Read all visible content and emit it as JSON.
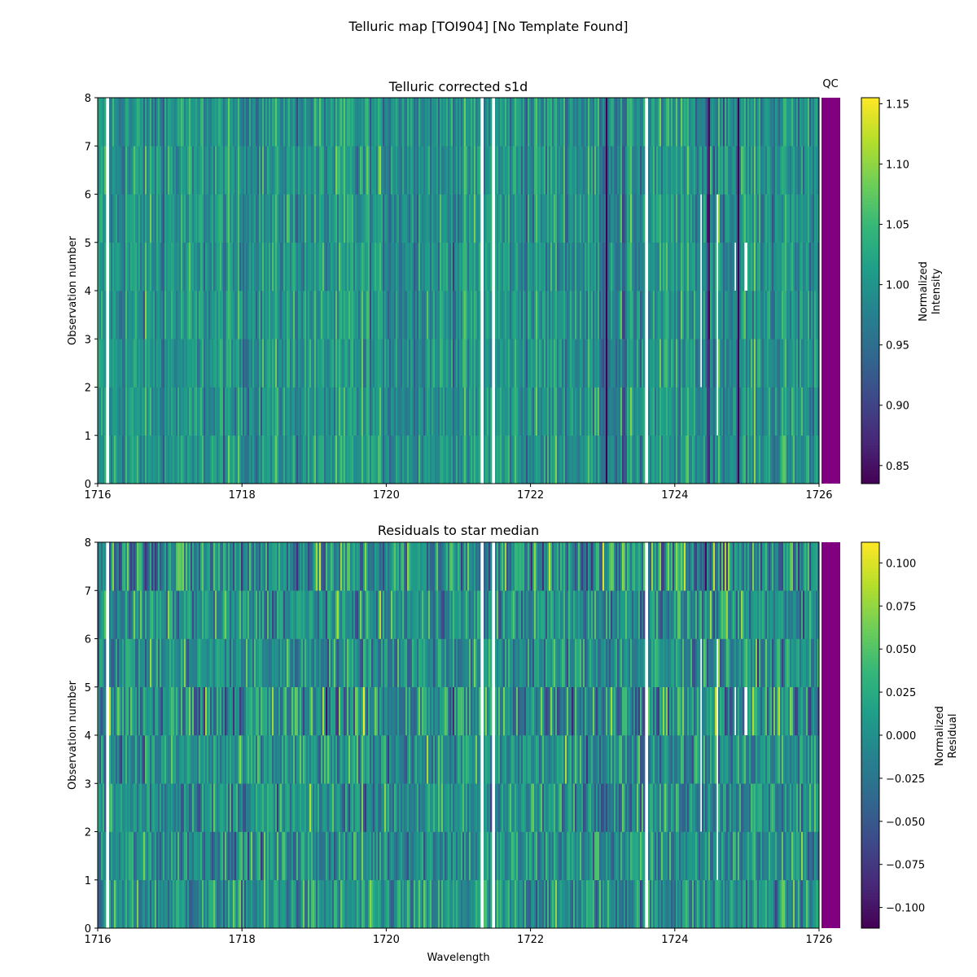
{
  "figure": {
    "title": "Telluric map [TOI904] [No Template Found]"
  },
  "chart_data": [
    {
      "type": "heatmap",
      "title": "Telluric corrected s1d",
      "xlabel": "",
      "ylabel": "Observation number",
      "xlim": [
        1716,
        1726
      ],
      "ylim": [
        0,
        8
      ],
      "xticks": [
        "1716",
        "1718",
        "1720",
        "1722",
        "1724",
        "1726"
      ],
      "yticks": [
        "0",
        "1",
        "2",
        "3",
        "4",
        "5",
        "6",
        "7",
        "8"
      ],
      "colormap": "viridis",
      "colorbar": {
        "label": [
          "Normalized",
          "Intensity"
        ],
        "range": [
          0.835,
          1.155
        ],
        "ticks": [
          "0.85",
          "0.90",
          "0.95",
          "1.00",
          "1.05",
          "1.10",
          "1.15"
        ]
      },
      "qc_label": "QC",
      "qc_color": "#800080",
      "center_value": 1.0,
      "noise_amplitude": 0.04,
      "absorption_lines": [
        {
          "wavelength": 1723.05,
          "depth": 0.16
        },
        {
          "wavelength": 1723.3,
          "depth": 0.14
        },
        {
          "wavelength": 1724.47,
          "depth": 0.15
        },
        {
          "wavelength": 1724.88,
          "depth": 0.15
        }
      ],
      "nan_bands": [
        {
          "wavelength": [
            1716.12,
            1716.16
          ],
          "rows": [
            0,
            8
          ]
        },
        {
          "wavelength": [
            1721.3,
            1721.34
          ],
          "rows": [
            0,
            8
          ]
        },
        {
          "wavelength": [
            1721.46,
            1721.5
          ],
          "rows": [
            0,
            8
          ]
        },
        {
          "wavelength": [
            1723.58,
            1723.62
          ],
          "rows": [
            0,
            8
          ]
        },
        {
          "wavelength": [
            1724.35,
            1724.37
          ],
          "rows": [
            2,
            6
          ]
        },
        {
          "wavelength": [
            1724.58,
            1724.6
          ],
          "rows": [
            1,
            6
          ]
        },
        {
          "wavelength": [
            1724.83,
            1724.85
          ],
          "rows": [
            4,
            5
          ]
        },
        {
          "wavelength": [
            1724.97,
            1724.99
          ],
          "rows": [
            4,
            5
          ]
        }
      ]
    },
    {
      "type": "heatmap",
      "title": "Residuals to star median",
      "xlabel": "Wavelength",
      "ylabel": "Observation number",
      "xlim": [
        1716,
        1726
      ],
      "ylim": [
        0,
        8
      ],
      "xticks": [
        "1716",
        "1718",
        "1720",
        "1722",
        "1724",
        "1726"
      ],
      "yticks": [
        "0",
        "1",
        "2",
        "3",
        "4",
        "5",
        "6",
        "7",
        "8"
      ],
      "colormap": "viridis",
      "colorbar": {
        "label": [
          "Normalized",
          "Residual"
        ],
        "range": [
          -0.112,
          0.112
        ],
        "ticks": [
          "0.100",
          "0.075",
          "0.050",
          "0.025",
          "0.000",
          "−0.025",
          "−0.050",
          "−0.075",
          "−0.100"
        ]
      },
      "qc_color": "#800080",
      "center_value": 0.0,
      "noise_amplitude": 0.03,
      "absorption_lines": [],
      "nan_bands": [
        {
          "wavelength": [
            1716.12,
            1716.16
          ],
          "rows": [
            0,
            8
          ]
        },
        {
          "wavelength": [
            1721.3,
            1721.34
          ],
          "rows": [
            0,
            8
          ]
        },
        {
          "wavelength": [
            1721.46,
            1721.5
          ],
          "rows": [
            0,
            8
          ]
        },
        {
          "wavelength": [
            1723.58,
            1723.62
          ],
          "rows": [
            0,
            8
          ]
        },
        {
          "wavelength": [
            1724.35,
            1724.37
          ],
          "rows": [
            2,
            6
          ]
        },
        {
          "wavelength": [
            1724.58,
            1724.6
          ],
          "rows": [
            1,
            6
          ]
        },
        {
          "wavelength": [
            1724.83,
            1724.85
          ],
          "rows": [
            4,
            5
          ]
        },
        {
          "wavelength": [
            1724.97,
            1724.99
          ],
          "rows": [
            4,
            5
          ]
        }
      ]
    }
  ]
}
